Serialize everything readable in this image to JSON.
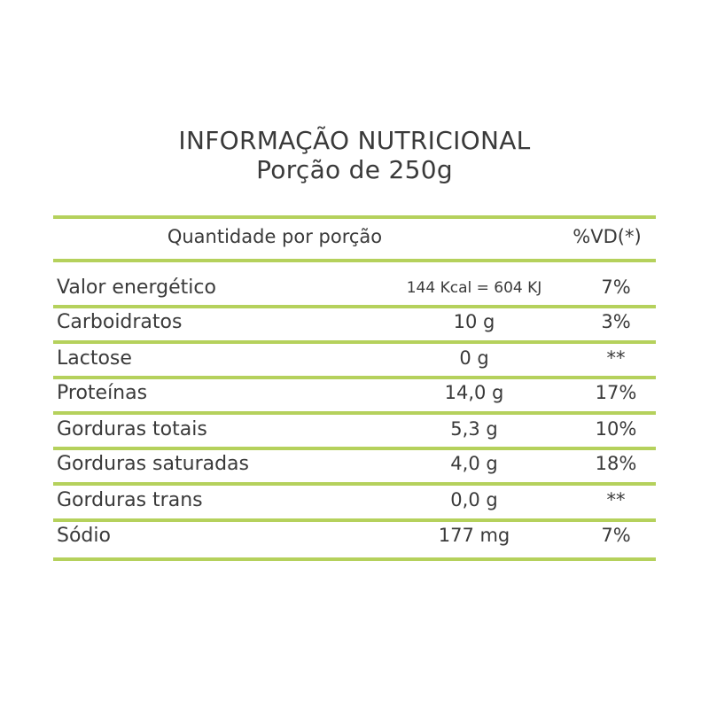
{
  "title": {
    "line1": "INFORMAÇÃO NUTRICIONAL",
    "line2": "Porção de 250g"
  },
  "table": {
    "header": {
      "quantity": "Quantidade por porção",
      "vd": "%VD(*)"
    },
    "rows": [
      {
        "name": "Valor energético",
        "amount": "144 Kcal = 604 KJ",
        "vd": "7%"
      },
      {
        "name": "Carboidratos",
        "amount": "10 g",
        "vd": "3%"
      },
      {
        "name": "Lactose",
        "amount": "0 g",
        "vd": "**"
      },
      {
        "name": "Proteínas",
        "amount": "14,0 g",
        "vd": "17%"
      },
      {
        "name": "Gorduras totais",
        "amount": "5,3 g",
        "vd": "10%"
      },
      {
        "name": "Gorduras saturadas",
        "amount": "4,0 g",
        "vd": "18%"
      },
      {
        "name": "Gorduras trans",
        "amount": "0,0 g",
        "vd": "**"
      },
      {
        "name": "Sódio",
        "amount": "177 mg",
        "vd": "7%"
      }
    ]
  },
  "colors": {
    "rule": "#b5d15c",
    "text": "#3a3a3a"
  }
}
